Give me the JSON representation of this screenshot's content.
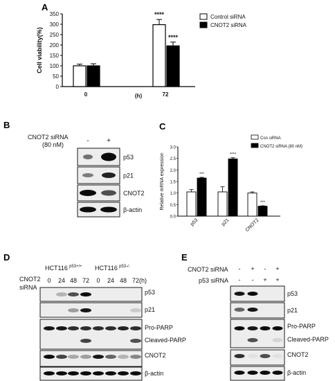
{
  "panels": {
    "A": {
      "label": "A"
    },
    "B": {
      "label": "B",
      "condition_line1": "CNOT2  siRNA",
      "condition_line2": "(80 nM)",
      "lanes": [
        "-",
        "+"
      ],
      "blots": [
        "p53",
        "p21",
        "CNOT2",
        "β-actin"
      ]
    },
    "C": {
      "label": "C"
    },
    "D": {
      "label": "D",
      "cell_line_1": "HCT116",
      "genotype_1": "p53+/+",
      "cell_line_2": "HCT116",
      "genotype_2": "p53-/-",
      "condition_line1": "CNOT2",
      "condition_line2": "siRNA",
      "timepoints": [
        "0",
        "24",
        "48",
        "72",
        "0",
        "24",
        "48",
        "72"
      ],
      "unit": "(h)",
      "blots": [
        "p53",
        "p21",
        "Pro-PARP",
        "Cleaved-PARP",
        "CNOT2",
        "β-actin"
      ]
    },
    "E": {
      "label": "E",
      "row1_label": "CNOT2  siRNA",
      "row1": [
        "-",
        "+",
        "-",
        "+"
      ],
      "row2_label": "p53 siRNA",
      "row2": [
        "-",
        "-",
        "+",
        "+"
      ],
      "blots": [
        "p53",
        "p21",
        "Pro-PARP",
        "Cleaved-PARP",
        "CNOT2",
        "β-actin"
      ]
    }
  },
  "chart_data": [
    {
      "type": "bar",
      "panel": "A",
      "categories": [
        "0",
        "72"
      ],
      "series": [
        {
          "name": "Control siRNA",
          "values": [
            100,
            298
          ],
          "errors": [
            8,
            25
          ],
          "color": "#ffffff"
        },
        {
          "name": "CNOT2 siRNA",
          "values": [
            100,
            196
          ],
          "errors": [
            10,
            18
          ],
          "color": "#000000"
        }
      ],
      "significance": [
        "",
        "",
        "****",
        "****"
      ],
      "xlabel": "(h)",
      "ylabel": "Cell viability(%)",
      "ylim": [
        0,
        350
      ],
      "yticks": [
        "0",
        "50",
        "100",
        "150",
        "200",
        "250",
        "300",
        "350"
      ],
      "legend_position": "top-right"
    },
    {
      "type": "bar",
      "panel": "C",
      "categories": [
        "p53",
        "p21",
        "CNOT2"
      ],
      "series": [
        {
          "name": "Con siRNA",
          "values": [
            1.05,
            1.05,
            1.0
          ],
          "errors": [
            0.1,
            0.22,
            0.05
          ],
          "color": "#ffffff"
        },
        {
          "name": "CNOT2 siRNA (80 nM)",
          "values": [
            1.65,
            2.48,
            0.43
          ],
          "errors": [
            0.03,
            0.05,
            0.02
          ],
          "color": "#000000"
        }
      ],
      "significance": [
        "",
        "***",
        "",
        "****",
        "",
        "***"
      ],
      "ylabel": "Relative mRNA expression",
      "ylim": [
        0,
        3.0
      ],
      "yticks": [
        "0.0",
        "0.5",
        "1.0",
        "1.5",
        "2.0",
        "2.5",
        "3.0"
      ],
      "legend_position": "top-right"
    }
  ]
}
